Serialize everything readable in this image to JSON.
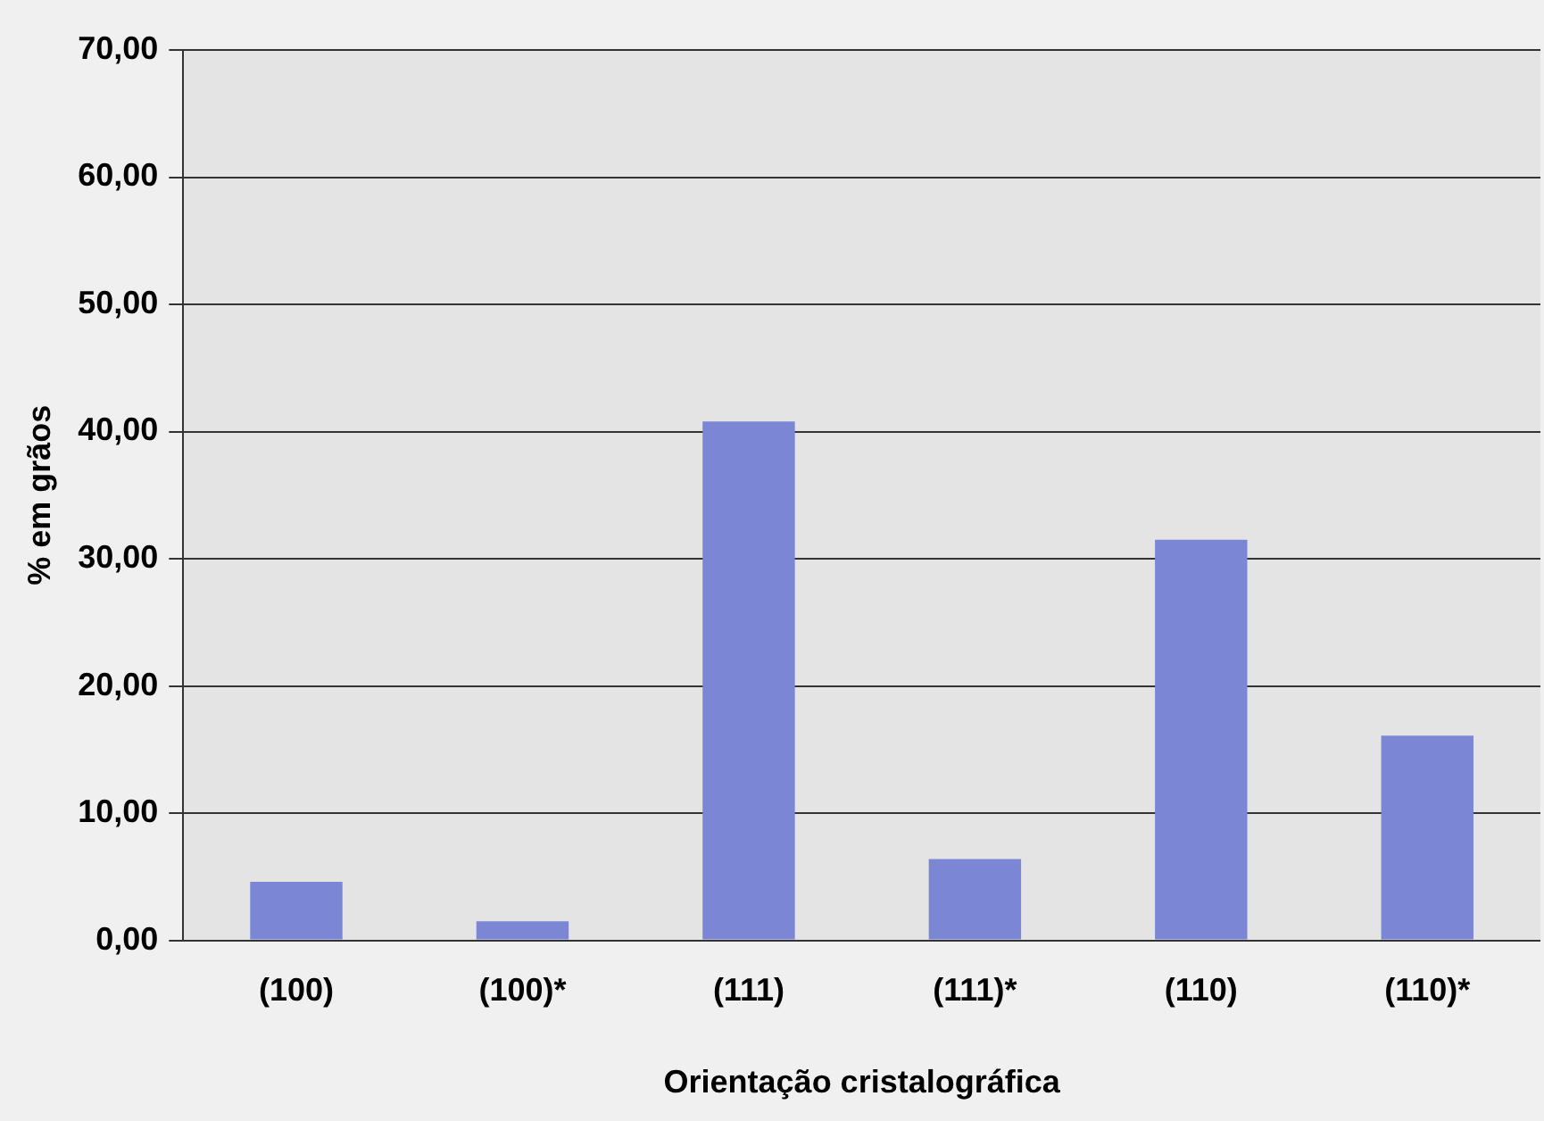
{
  "chart_data": {
    "type": "bar",
    "xlabel": "Orientação cristalográfica",
    "ylabel": "% em grãos",
    "categories": [
      "(100)",
      "(100)*",
      "(111)",
      "(111)*",
      "(110)",
      "(110)*"
    ],
    "values": [
      4.6,
      1.5,
      40.8,
      6.4,
      31.5,
      16.1
    ],
    "color": "#7b86d4",
    "ylim": [
      0,
      70
    ],
    "yticks": [
      {
        "value": 0,
        "label": "0,00"
      },
      {
        "value": 10,
        "label": "10,00"
      },
      {
        "value": 20,
        "label": "20,00"
      },
      {
        "value": 30,
        "label": "30,00"
      },
      {
        "value": 40,
        "label": "40,00"
      },
      {
        "value": 50,
        "label": "50,00"
      },
      {
        "value": 60,
        "label": "60,00"
      },
      {
        "value": 70,
        "label": "70,00"
      }
    ],
    "grid": "y",
    "legend": false
  }
}
